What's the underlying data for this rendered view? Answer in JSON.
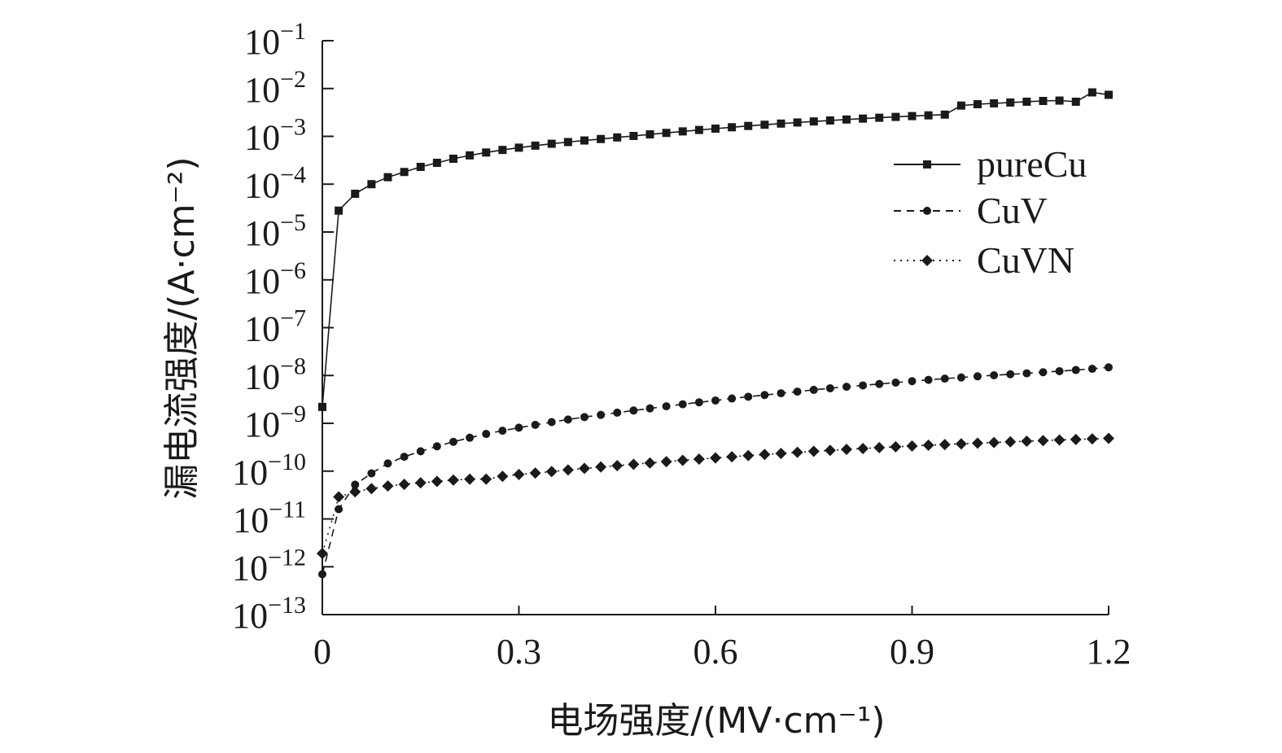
{
  "chart_data": {
    "type": "line",
    "title": "",
    "xlabel": "电场强度/(MV·cm⁻¹)",
    "ylabel": "漏电流强度/(A·cm⁻²)",
    "xlim": [
      0,
      1.2
    ],
    "ylim_log10": [
      -13,
      -1
    ],
    "x_ticks": [
      0,
      0.3,
      0.6,
      0.9,
      1.2
    ],
    "x_tick_labels": [
      "0",
      "0.3",
      "0.6",
      "0.9",
      "1.2"
    ],
    "y_ticks_exp": [
      -1,
      -2,
      -3,
      -4,
      -5,
      -6,
      -7,
      -8,
      -9,
      -10,
      -11,
      -12,
      -13
    ],
    "y_tick_base": "10",
    "y_tick_exponents": [
      "−1",
      "−2",
      "−3",
      "−4",
      "−5",
      "−6",
      "−7",
      "−8",
      "−9",
      "−10",
      "−11",
      "−12",
      "−13"
    ],
    "grid": false,
    "legend_position": "right",
    "series": [
      {
        "name": "pureCu",
        "line_style": "solid",
        "marker": "square",
        "x": [
          0,
          0.025,
          0.05,
          0.075,
          0.1,
          0.125,
          0.15,
          0.175,
          0.2,
          0.225,
          0.25,
          0.275,
          0.3,
          0.325,
          0.35,
          0.375,
          0.4,
          0.425,
          0.45,
          0.475,
          0.5,
          0.525,
          0.55,
          0.575,
          0.6,
          0.625,
          0.65,
          0.675,
          0.7,
          0.725,
          0.75,
          0.775,
          0.8,
          0.825,
          0.85,
          0.875,
          0.9,
          0.925,
          0.95,
          0.975,
          1.0,
          1.025,
          1.05,
          1.075,
          1.1,
          1.125,
          1.15,
          1.175,
          1.2
        ],
        "y": [
          2.2e-09,
          2.8e-05,
          6.3e-05,
          0.0001,
          0.00014,
          0.00018,
          0.00023,
          0.00028,
          0.00034,
          0.0004,
          0.00046,
          0.00052,
          0.00058,
          0.00064,
          0.0007,
          0.00076,
          0.00082,
          0.00088,
          0.00095,
          0.00102,
          0.0011,
          0.00118,
          0.00127,
          0.00136,
          0.00145,
          0.00155,
          0.00165,
          0.00175,
          0.00185,
          0.00195,
          0.00205,
          0.00215,
          0.00225,
          0.00235,
          0.00245,
          0.00255,
          0.00265,
          0.00275,
          0.00285,
          0.0044,
          0.0047,
          0.0049,
          0.0051,
          0.0053,
          0.0055,
          0.0056,
          0.0053,
          0.0083,
          0.0074
        ]
      },
      {
        "name": "CuV",
        "line_style": "dashed",
        "marker": "circle",
        "x": [
          0,
          0.025,
          0.05,
          0.075,
          0.1,
          0.125,
          0.15,
          0.175,
          0.2,
          0.225,
          0.25,
          0.275,
          0.3,
          0.325,
          0.35,
          0.375,
          0.4,
          0.425,
          0.45,
          0.475,
          0.5,
          0.525,
          0.55,
          0.575,
          0.6,
          0.625,
          0.65,
          0.675,
          0.7,
          0.725,
          0.75,
          0.775,
          0.8,
          0.825,
          0.85,
          0.875,
          0.9,
          0.925,
          0.95,
          0.975,
          1.0,
          1.025,
          1.05,
          1.075,
          1.1,
          1.125,
          1.15,
          1.175,
          1.2
        ],
        "y": [
          7e-13,
          1.6e-11,
          5.2e-11,
          9e-11,
          1.45e-10,
          2e-10,
          2.6e-10,
          3.3e-10,
          4.1e-10,
          5e-10,
          6e-10,
          7e-10,
          8.1e-10,
          9.3e-10,
          1.06e-09,
          1.2e-09,
          1.35e-09,
          1.5e-09,
          1.67e-09,
          1.85e-09,
          2.05e-09,
          2.27e-09,
          2.5e-09,
          2.75e-09,
          3e-09,
          3.3e-09,
          3.6e-09,
          3.9e-09,
          4.25e-09,
          4.6e-09,
          5e-09,
          5.4e-09,
          5.8e-09,
          6.2e-09,
          6.65e-09,
          7.1e-09,
          7.6e-09,
          8.1e-09,
          8.6e-09,
          9.1e-09,
          9.6e-09,
          1.01e-08,
          1.06e-08,
          1.11e-08,
          1.17e-08,
          1.23e-08,
          1.3e-08,
          1.38e-08,
          1.48e-08
        ]
      },
      {
        "name": "CuVN",
        "line_style": "dotted",
        "marker": "diamond",
        "x": [
          0,
          0.025,
          0.05,
          0.075,
          0.1,
          0.125,
          0.15,
          0.175,
          0.2,
          0.225,
          0.25,
          0.275,
          0.3,
          0.325,
          0.35,
          0.375,
          0.4,
          0.425,
          0.45,
          0.475,
          0.5,
          0.525,
          0.55,
          0.575,
          0.6,
          0.625,
          0.65,
          0.675,
          0.7,
          0.725,
          0.75,
          0.775,
          0.8,
          0.825,
          0.85,
          0.875,
          0.9,
          0.925,
          0.95,
          0.975,
          1.0,
          1.025,
          1.05,
          1.075,
          1.1,
          1.125,
          1.15,
          1.175,
          1.2
        ],
        "y": [
          1.9e-12,
          2.9e-11,
          3.7e-11,
          4.3e-11,
          4.9e-11,
          5.3e-11,
          5.7e-11,
          6.1e-11,
          6.5e-11,
          6.8e-11,
          6.8e-11,
          7.8e-11,
          8.5e-11,
          9.1e-11,
          9.8e-11,
          1.06e-10,
          1.14e-10,
          1.22e-10,
          1.3e-10,
          1.39e-10,
          1.48e-10,
          1.58e-10,
          1.68e-10,
          1.78e-10,
          1.89e-10,
          2e-10,
          2.12e-10,
          2.23e-10,
          2.35e-10,
          2.47e-10,
          2.6e-10,
          2.72e-10,
          2.85e-10,
          2.97e-10,
          3.1e-10,
          3.22e-10,
          3.35e-10,
          3.48e-10,
          3.6e-10,
          3.72e-10,
          3.85e-10,
          3.97e-10,
          4.1e-10,
          4.22e-10,
          4.35e-10,
          4.47e-10,
          4.6e-10,
          4.72e-10,
          4.85e-10
        ]
      }
    ],
    "colors": {
      "ink": "#1a1a1a"
    }
  }
}
